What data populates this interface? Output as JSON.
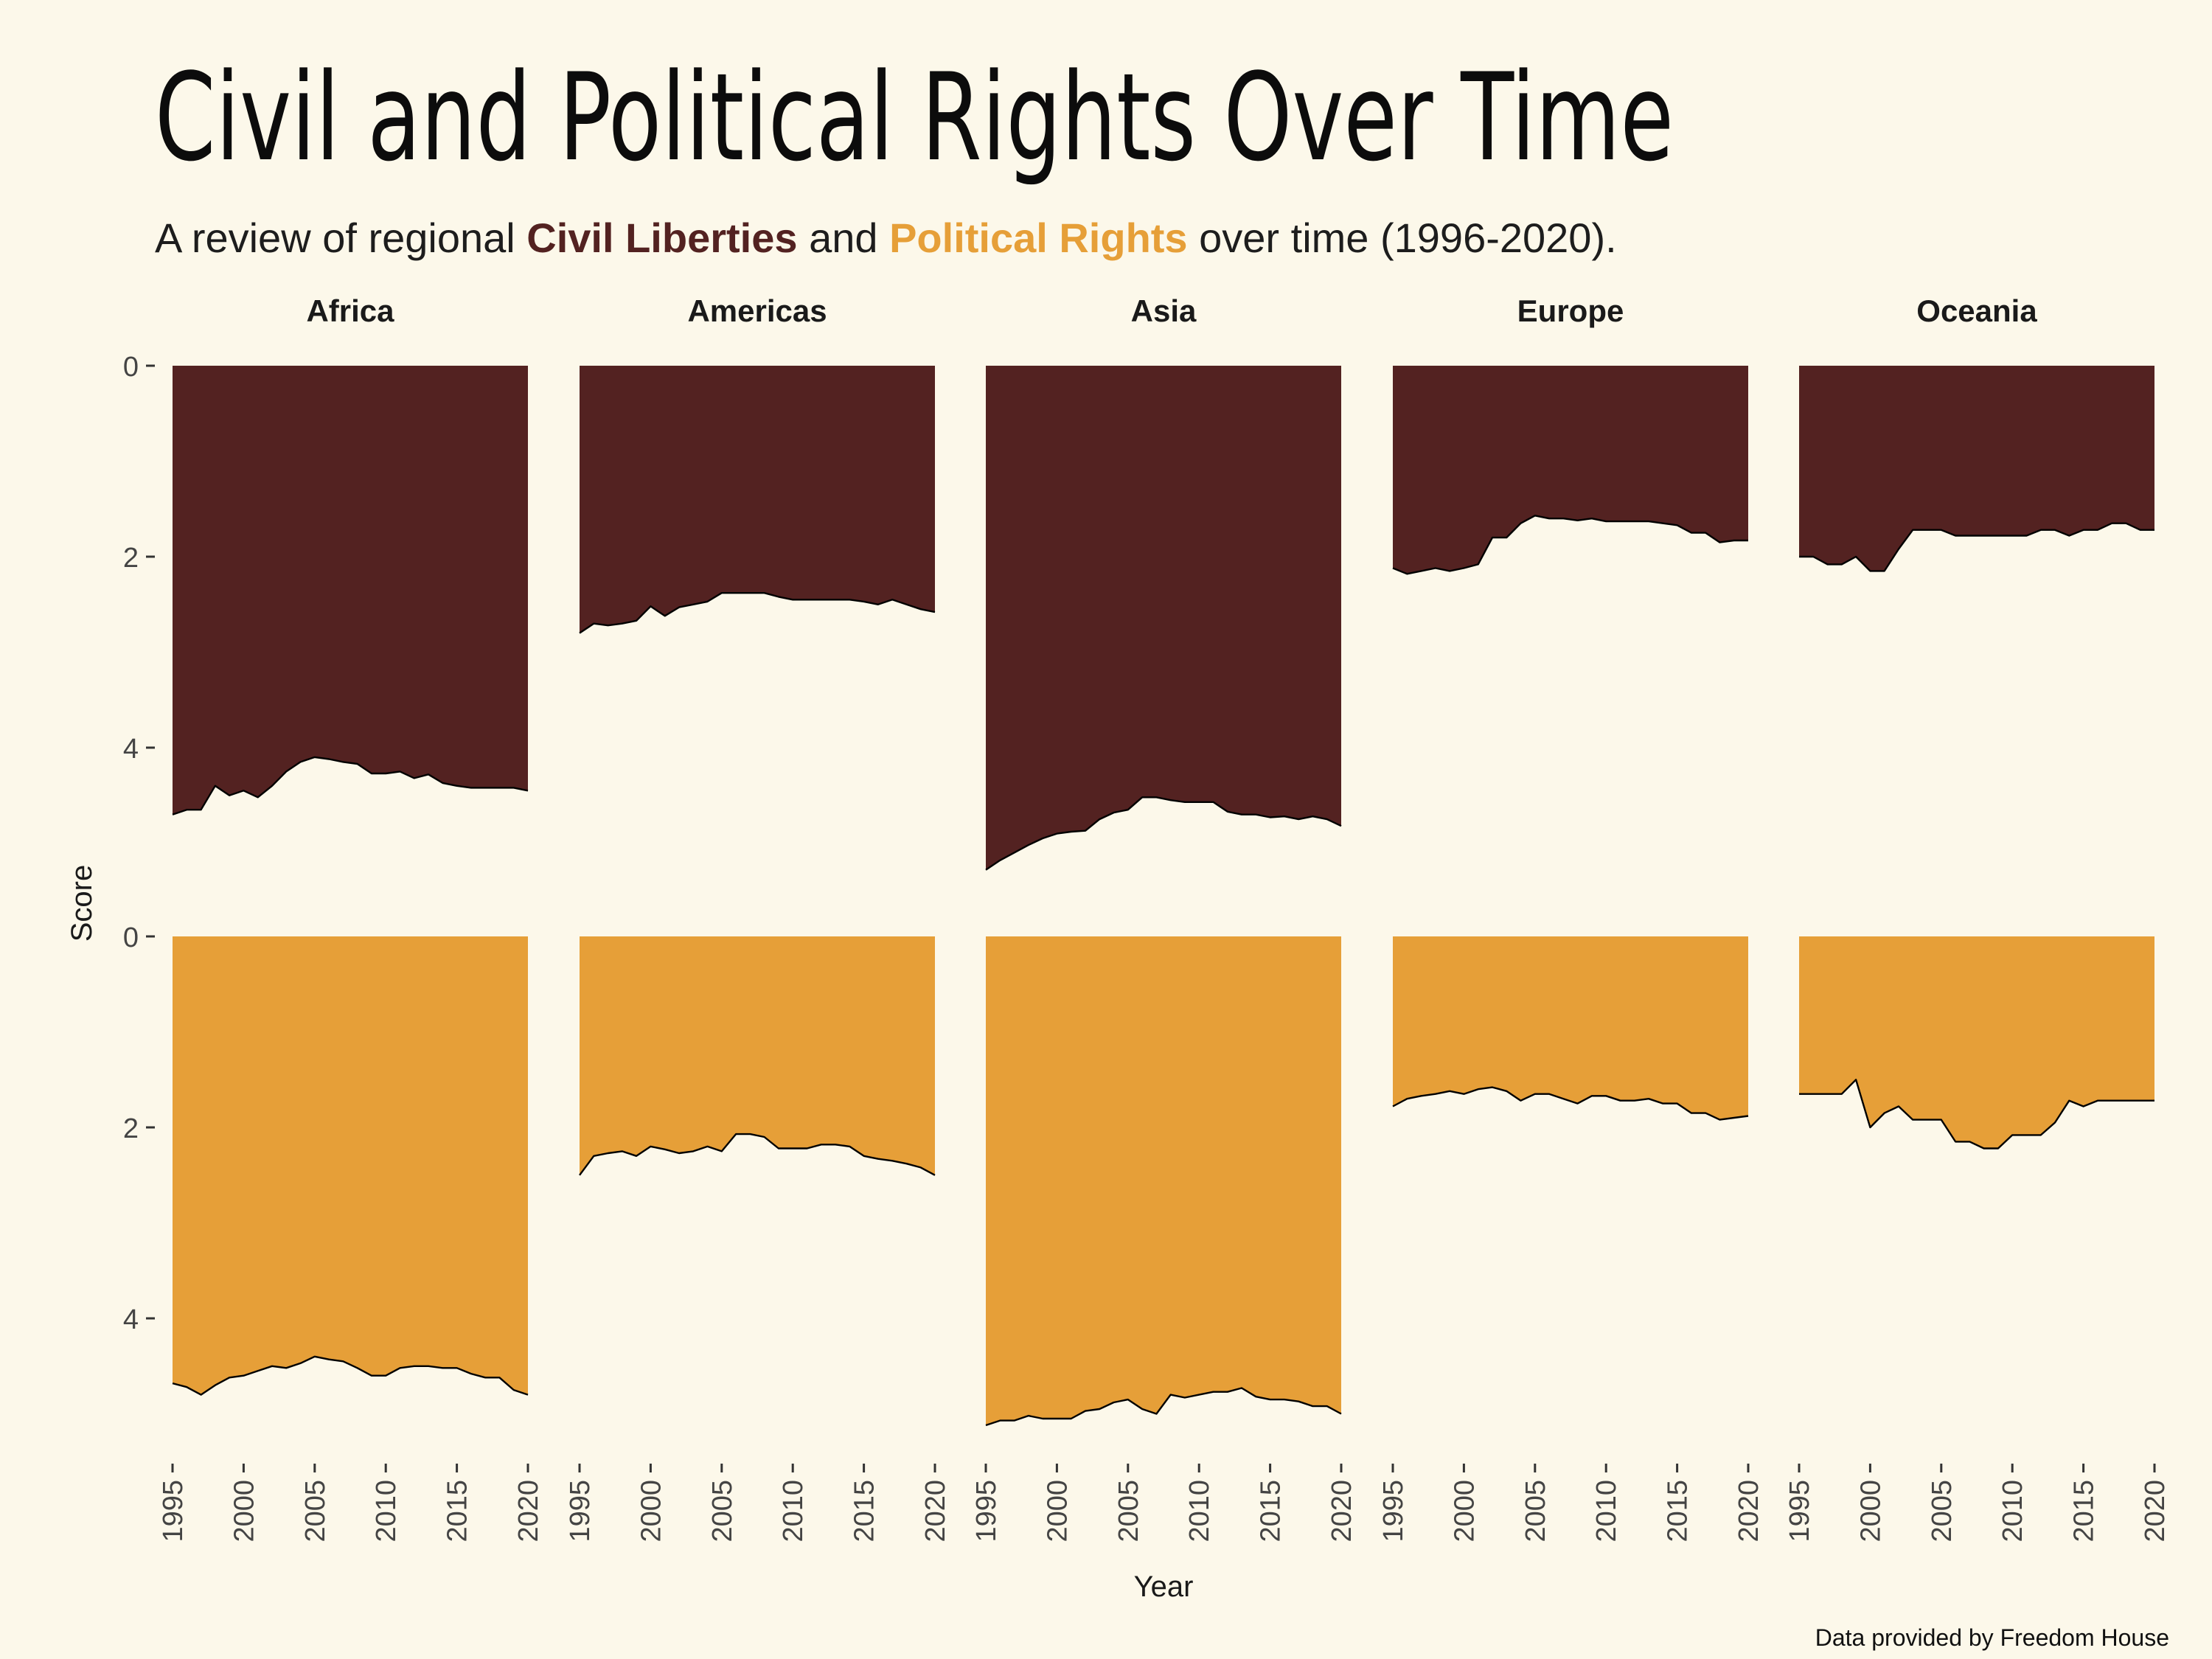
{
  "title": "Civil and Political Rights Over Time",
  "subtitle": {
    "prefix": "A review of regional ",
    "civil_label": "Civil Liberties",
    "middle": " and ",
    "political_label": "Political Rights",
    "suffix": " over time (1996-2020)."
  },
  "caption": "Data provided by Freedom House",
  "colors": {
    "civil_liberties": "#532221",
    "political_rights": "#E69F38",
    "background": "#FCF8EA",
    "outline": "#000000",
    "text": "#1a1a1a"
  },
  "chart_data": {
    "type": "area",
    "xlabel": "Year",
    "ylabel": "Score",
    "xlim": [
      1995,
      2020
    ],
    "ylim": [
      0,
      5.5
    ],
    "y_inverted": true,
    "x_ticks": [
      1995,
      2000,
      2005,
      2010,
      2015,
      2020
    ],
    "y_ticks": [
      0,
      2,
      4
    ],
    "x": [
      1995,
      1996,
      1997,
      1998,
      1999,
      2000,
      2001,
      2002,
      2003,
      2004,
      2005,
      2006,
      2007,
      2008,
      2009,
      2010,
      2011,
      2012,
      2013,
      2014,
      2015,
      2016,
      2017,
      2018,
      2019,
      2020
    ],
    "rows": [
      "Civil Liberties",
      "Political Rights"
    ],
    "panels": [
      {
        "region": "Africa",
        "civil_liberties": [
          4.7,
          4.65,
          4.65,
          4.4,
          4.5,
          4.45,
          4.52,
          4.4,
          4.25,
          4.15,
          4.1,
          4.12,
          4.15,
          4.17,
          4.27,
          4.27,
          4.25,
          4.32,
          4.28,
          4.37,
          4.4,
          4.42,
          4.42,
          4.42,
          4.42,
          4.45
        ],
        "political_rights": [
          4.68,
          4.72,
          4.8,
          4.7,
          4.62,
          4.6,
          4.55,
          4.5,
          4.52,
          4.47,
          4.4,
          4.43,
          4.45,
          4.52,
          4.6,
          4.6,
          4.52,
          4.5,
          4.5,
          4.52,
          4.52,
          4.58,
          4.62,
          4.62,
          4.75,
          4.8
        ]
      },
      {
        "region": "Americas",
        "civil_liberties": [
          2.8,
          2.7,
          2.72,
          2.7,
          2.67,
          2.52,
          2.62,
          2.53,
          2.5,
          2.47,
          2.38,
          2.38,
          2.38,
          2.38,
          2.42,
          2.45,
          2.45,
          2.45,
          2.45,
          2.45,
          2.47,
          2.5,
          2.45,
          2.5,
          2.55,
          2.58
        ],
        "political_rights": [
          2.5,
          2.3,
          2.27,
          2.25,
          2.3,
          2.2,
          2.23,
          2.27,
          2.25,
          2.2,
          2.25,
          2.07,
          2.07,
          2.1,
          2.22,
          2.22,
          2.22,
          2.18,
          2.18,
          2.2,
          2.3,
          2.33,
          2.35,
          2.38,
          2.42,
          2.5
        ]
      },
      {
        "region": "Asia",
        "civil_liberties": [
          5.28,
          5.18,
          5.1,
          5.02,
          4.95,
          4.9,
          4.88,
          4.87,
          4.75,
          4.68,
          4.65,
          4.52,
          4.52,
          4.55,
          4.57,
          4.57,
          4.57,
          4.67,
          4.7,
          4.7,
          4.73,
          4.72,
          4.75,
          4.72,
          4.75,
          4.82
        ],
        "political_rights": [
          5.12,
          5.07,
          5.07,
          5.02,
          5.05,
          5.05,
          5.05,
          4.97,
          4.95,
          4.88,
          4.85,
          4.95,
          5.0,
          4.8,
          4.83,
          4.8,
          4.77,
          4.77,
          4.73,
          4.82,
          4.85,
          4.85,
          4.87,
          4.92,
          4.92,
          5.0
        ]
      },
      {
        "region": "Europe",
        "civil_liberties": [
          2.12,
          2.18,
          2.15,
          2.12,
          2.15,
          2.12,
          2.08,
          1.8,
          1.8,
          1.65,
          1.57,
          1.6,
          1.6,
          1.62,
          1.6,
          1.63,
          1.63,
          1.63,
          1.63,
          1.65,
          1.67,
          1.75,
          1.75,
          1.85,
          1.83,
          1.83
        ],
        "political_rights": [
          1.78,
          1.7,
          1.67,
          1.65,
          1.62,
          1.65,
          1.6,
          1.58,
          1.62,
          1.72,
          1.65,
          1.65,
          1.7,
          1.75,
          1.67,
          1.67,
          1.72,
          1.72,
          1.7,
          1.75,
          1.75,
          1.85,
          1.85,
          1.92,
          1.9,
          1.88
        ]
      },
      {
        "region": "Oceania",
        "civil_liberties": [
          2.0,
          2.0,
          2.08,
          2.08,
          2.0,
          2.15,
          2.15,
          1.92,
          1.72,
          1.72,
          1.72,
          1.78,
          1.78,
          1.78,
          1.78,
          1.78,
          1.78,
          1.72,
          1.72,
          1.78,
          1.72,
          1.72,
          1.65,
          1.65,
          1.72,
          1.72
        ],
        "political_rights": [
          1.65,
          1.65,
          1.65,
          1.65,
          1.5,
          2.0,
          1.85,
          1.78,
          1.92,
          1.92,
          1.92,
          2.15,
          2.15,
          2.22,
          2.22,
          2.08,
          2.08,
          2.08,
          1.95,
          1.72,
          1.78,
          1.72,
          1.72,
          1.72,
          1.72,
          1.72
        ]
      }
    ]
  }
}
